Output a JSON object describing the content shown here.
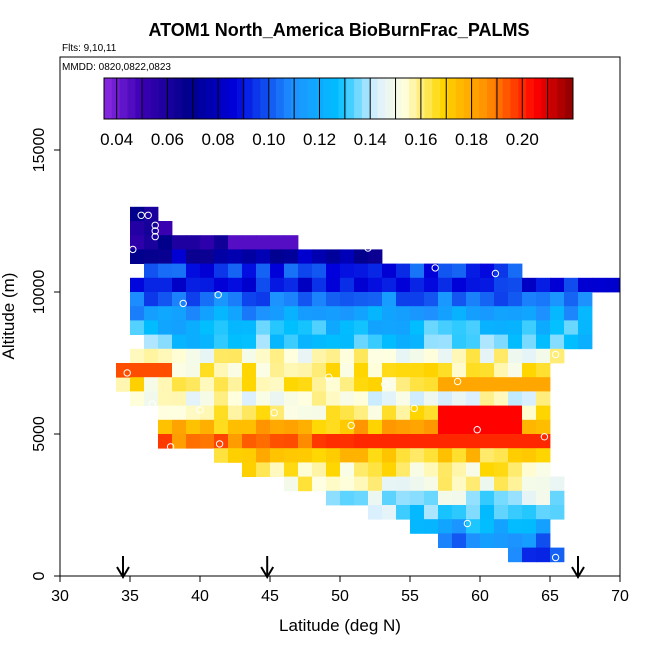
{
  "chart_data": {
    "type": "heatmap",
    "title": "ATOM1 North_America BioBurnFrac_PALMS",
    "flights_label": "Flts: 9,10,11",
    "dates_label": "MMDD: 0820,0822,0823",
    "xlabel": "Latitude (deg N)",
    "ylabel": "Altitude (m)",
    "xlim": [
      30,
      70
    ],
    "ylim": [
      0,
      18000
    ],
    "x_ticks": [
      "30",
      "35",
      "40",
      "45",
      "50",
      "55",
      "60",
      "65",
      "70"
    ],
    "y_ticks": [
      "0",
      "5000",
      "10000",
      "15000"
    ],
    "colorbar": {
      "range": [
        0.035,
        0.22
      ],
      "tick_labels": [
        "0.04",
        "0.06",
        "0.08",
        "0.10",
        "0.12",
        "0.14",
        "0.16",
        "0.18",
        "0.20"
      ],
      "tick_values": [
        0.04,
        0.06,
        0.08,
        0.1,
        0.12,
        0.14,
        0.16,
        0.18,
        0.2
      ]
    },
    "cell_size": {
      "lat": 1.0,
      "alt_m": 500
    },
    "row_bands": [
      {
        "alt_range": [
          12500,
          13000
        ],
        "lat_range": [
          35,
          37
        ],
        "value": 0.07
      },
      {
        "alt_range": [
          12000,
          12500
        ],
        "lat_range": [
          35,
          38
        ],
        "value": 0.055
      },
      {
        "alt_range": [
          11500,
          12000
        ],
        "lat_range": [
          35,
          47
        ],
        "value": 0.06
      },
      {
        "alt_range": [
          11000,
          11500
        ],
        "lat_range": [
          35,
          53
        ],
        "value": 0.075
      },
      {
        "alt_range": [
          10500,
          11000
        ],
        "lat_range": [
          36,
          63
        ],
        "value": 0.095
      },
      {
        "alt_range": [
          10000,
          10500
        ],
        "lat_range": [
          35,
          70
        ],
        "value": 0.09
      },
      {
        "alt_range": [
          9500,
          10000
        ],
        "lat_range": [
          35,
          68
        ],
        "value": 0.105
      },
      {
        "alt_range": [
          9000,
          9500
        ],
        "lat_range": [
          35,
          68
        ],
        "value": 0.115
      },
      {
        "alt_range": [
          8500,
          9000
        ],
        "lat_range": [
          35,
          68
        ],
        "value": 0.125
      },
      {
        "alt_range": [
          8000,
          8500
        ],
        "lat_range": [
          36,
          68
        ],
        "value": 0.13
      },
      {
        "alt_range": [
          7500,
          8000
        ],
        "lat_range": [
          35,
          66
        ],
        "value": 0.155
      },
      {
        "alt_range": [
          7000,
          7500
        ],
        "lat_range": [
          35,
          65
        ],
        "value": 0.16
      },
      {
        "alt_range": [
          6500,
          7000
        ],
        "lat_range": [
          34,
          65
        ],
        "value": 0.16
      },
      {
        "alt_range": [
          6000,
          6500
        ],
        "lat_range": [
          35,
          65
        ],
        "value": 0.15
      },
      {
        "alt_range": [
          5500,
          6000
        ],
        "lat_range": [
          37,
          65
        ],
        "value": 0.16
      },
      {
        "alt_range": [
          5000,
          5500
        ],
        "lat_range": [
          37,
          65
        ],
        "value": 0.175
      },
      {
        "alt_range": [
          4500,
          5000
        ],
        "lat_range": [
          37,
          65
        ],
        "value": 0.19
      },
      {
        "alt_range": [
          4000,
          4500
        ],
        "lat_range": [
          41,
          65
        ],
        "value": 0.17
      },
      {
        "alt_range": [
          3500,
          4000
        ],
        "lat_range": [
          43,
          65
        ],
        "value": 0.16
      },
      {
        "alt_range": [
          3000,
          3500
        ],
        "lat_range": [
          46,
          66
        ],
        "value": 0.155
      },
      {
        "alt_range": [
          2500,
          3000
        ],
        "lat_range": [
          49,
          66
        ],
        "value": 0.14
      },
      {
        "alt_range": [
          2000,
          2500
        ],
        "lat_range": [
          52,
          66
        ],
        "value": 0.135
      },
      {
        "alt_range": [
          1500,
          2000
        ],
        "lat_range": [
          55,
          65
        ],
        "value": 0.12
      },
      {
        "alt_range": [
          1000,
          1500
        ],
        "lat_range": [
          57,
          65
        ],
        "value": 0.105
      },
      {
        "alt_range": [
          500,
          1000
        ],
        "lat_range": [
          62,
          66
        ],
        "value": 0.1
      }
    ],
    "highlights": [
      {
        "alt_range": [
          7000,
          7500
        ],
        "lat_range": [
          34,
          38
        ],
        "value": 0.195
      },
      {
        "alt_range": [
          5000,
          6000
        ],
        "lat_range": [
          57,
          63
        ],
        "value": 0.205
      },
      {
        "alt_range": [
          4500,
          5000
        ],
        "lat_range": [
          51,
          65
        ],
        "value": 0.2
      },
      {
        "alt_range": [
          11500,
          12000
        ],
        "lat_range": [
          42,
          47
        ],
        "value": 0.045
      },
      {
        "alt_range": [
          6500,
          7000
        ],
        "lat_range": [
          57,
          65
        ],
        "value": 0.18
      }
    ],
    "profile_points": [
      {
        "lat": 35.8,
        "alt": 12700
      },
      {
        "lat": 36.3,
        "alt": 12700
      },
      {
        "lat": 36.8,
        "alt": 12350
      },
      {
        "lat": 36.8,
        "alt": 12150
      },
      {
        "lat": 36.8,
        "alt": 11950
      },
      {
        "lat": 47.5,
        "alt": 11750
      },
      {
        "lat": 35.2,
        "alt": 11500
      },
      {
        "lat": 52.0,
        "alt": 11550
      },
      {
        "lat": 56.8,
        "alt": 10850
      },
      {
        "lat": 61.1,
        "alt": 10650
      },
      {
        "lat": 70.0,
        "alt": 10850
      },
      {
        "lat": 41.3,
        "alt": 9900
      },
      {
        "lat": 38.8,
        "alt": 9600
      },
      {
        "lat": 65.4,
        "alt": 7800
      },
      {
        "lat": 34.8,
        "alt": 7150
      },
      {
        "lat": 49.2,
        "alt": 7000
      },
      {
        "lat": 53.2,
        "alt": 6750
      },
      {
        "lat": 58.4,
        "alt": 6850
      },
      {
        "lat": 36.6,
        "alt": 6050
      },
      {
        "lat": 40.0,
        "alt": 5850
      },
      {
        "lat": 45.3,
        "alt": 5750
      },
      {
        "lat": 55.3,
        "alt": 5900
      },
      {
        "lat": 50.8,
        "alt": 5300
      },
      {
        "lat": 59.8,
        "alt": 5150
      },
      {
        "lat": 64.6,
        "alt": 4900
      },
      {
        "lat": 41.4,
        "alt": 4650
      },
      {
        "lat": 37.9,
        "alt": 4550
      },
      {
        "lat": 59.1,
        "alt": 1850
      },
      {
        "lat": 65.4,
        "alt": 650
      }
    ],
    "arrows_lat": [
      34.5,
      44.8,
      67.0
    ]
  }
}
